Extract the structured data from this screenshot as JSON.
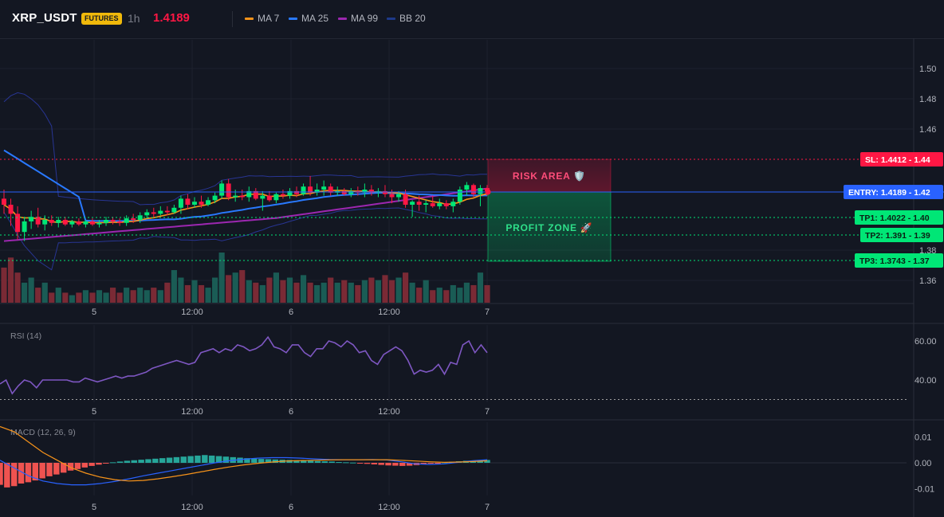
{
  "header": {
    "symbol": "XRP_USDT",
    "badge": "FUTURES",
    "timeframe": "1h",
    "price": "1.4189"
  },
  "legend": [
    {
      "label": "MA 7",
      "color": "#f7931a"
    },
    {
      "label": "MA 25",
      "color": "#2979ff"
    },
    {
      "label": "MA 99",
      "color": "#9c27b0"
    },
    {
      "label": "BB 20",
      "color": "#1e3a8a"
    }
  ],
  "colors": {
    "up": "#26a69a",
    "up_bright": "#00e676",
    "down": "#ff1744",
    "accent": "#2962ff",
    "badge": "#f0b90b",
    "price": "#ff1744"
  },
  "chart_data": [
    {
      "type": "candlestick",
      "pair": "XRP_USDT",
      "x_ticks": [
        "5",
        "12:00",
        "6",
        "12:00",
        "7"
      ],
      "y_ticks": [
        "1.50",
        "1.48",
        "1.46",
        "1.38",
        "1.36"
      ],
      "ylim": [
        1.353,
        1.513
      ],
      "grid": true,
      "overlays": [
        {
          "name": "MA 7",
          "color": "#f7931a"
        },
        {
          "name": "MA 25",
          "color": "#2979ff"
        },
        {
          "name": "MA 99",
          "color": "#9c27b0"
        },
        {
          "name": "BB 20",
          "color": "#1e3a8a"
        }
      ],
      "levels": [
        {
          "label": "SL: 1.4412",
          "value": 1.44,
          "axis_label": "1.44",
          "color": "#ff1744",
          "style": "dotted"
        },
        {
          "label": "ENTRY: 1.4189",
          "value": 1.42,
          "axis_label": "1.42",
          "color": "#2962ff",
          "style": "solid"
        },
        {
          "label": "TP1: 1.4022",
          "value": 1.4,
          "axis_label": "1.40",
          "color": "#00e676",
          "style": "dotted"
        },
        {
          "label": "TP2: 1.391",
          "value": 1.39,
          "axis_label": "1.39",
          "color": "#00e676",
          "style": "dotted"
        },
        {
          "label": "TP3: 1.3743",
          "value": 1.37,
          "axis_label": "1.37",
          "color": "#00e676",
          "style": "dotted"
        }
      ],
      "zones": [
        {
          "label": "RISK AREA 🛡️",
          "from": 1.4189,
          "to": 1.4412,
          "color": "#ff1744"
        },
        {
          "label": "PROFIT ZONE 🚀",
          "from": 1.3743,
          "to": 1.4189,
          "color": "#00e676"
        }
      ],
      "candles": [
        {
          "o": 1.414,
          "h": 1.42,
          "l": 1.404,
          "c": 1.41
        },
        {
          "o": 1.41,
          "h": 1.414,
          "l": 1.396,
          "c": 1.404
        },
        {
          "o": 1.404,
          "h": 1.409,
          "l": 1.387,
          "c": 1.392
        },
        {
          "o": 1.392,
          "h": 1.402,
          "l": 1.386,
          "c": 1.399
        },
        {
          "o": 1.399,
          "h": 1.406,
          "l": 1.394,
          "c": 1.402
        },
        {
          "o": 1.402,
          "h": 1.408,
          "l": 1.395,
          "c": 1.397
        },
        {
          "o": 1.397,
          "h": 1.403,
          "l": 1.393,
          "c": 1.4
        },
        {
          "o": 1.4,
          "h": 1.403,
          "l": 1.396,
          "c": 1.398
        },
        {
          "o": 1.398,
          "h": 1.402,
          "l": 1.395,
          "c": 1.4
        },
        {
          "o": 1.4,
          "h": 1.402,
          "l": 1.396,
          "c": 1.397
        },
        {
          "o": 1.397,
          "h": 1.4,
          "l": 1.395,
          "c": 1.399
        },
        {
          "o": 1.399,
          "h": 1.401,
          "l": 1.396,
          "c": 1.397
        },
        {
          "o": 1.397,
          "h": 1.4,
          "l": 1.395,
          "c": 1.399
        },
        {
          "o": 1.399,
          "h": 1.401,
          "l": 1.396,
          "c": 1.397
        },
        {
          "o": 1.397,
          "h": 1.4,
          "l": 1.395,
          "c": 1.398
        },
        {
          "o": 1.398,
          "h": 1.402,
          "l": 1.396,
          "c": 1.4
        },
        {
          "o": 1.4,
          "h": 1.402,
          "l": 1.397,
          "c": 1.399
        },
        {
          "o": 1.399,
          "h": 1.401,
          "l": 1.396,
          "c": 1.398
        },
        {
          "o": 1.398,
          "h": 1.403,
          "l": 1.396,
          "c": 1.401
        },
        {
          "o": 1.401,
          "h": 1.404,
          "l": 1.398,
          "c": 1.4
        },
        {
          "o": 1.4,
          "h": 1.405,
          "l": 1.398,
          "c": 1.403
        },
        {
          "o": 1.403,
          "h": 1.407,
          "l": 1.401,
          "c": 1.405
        },
        {
          "o": 1.405,
          "h": 1.408,
          "l": 1.402,
          "c": 1.404
        },
        {
          "o": 1.404,
          "h": 1.409,
          "l": 1.403,
          "c": 1.406
        },
        {
          "o": 1.406,
          "h": 1.409,
          "l": 1.403,
          "c": 1.405
        },
        {
          "o": 1.405,
          "h": 1.41,
          "l": 1.404,
          "c": 1.408
        },
        {
          "o": 1.408,
          "h": 1.416,
          "l": 1.404,
          "c": 1.414
        },
        {
          "o": 1.414,
          "h": 1.417,
          "l": 1.407,
          "c": 1.41
        },
        {
          "o": 1.41,
          "h": 1.415,
          "l": 1.408,
          "c": 1.412
        },
        {
          "o": 1.412,
          "h": 1.416,
          "l": 1.408,
          "c": 1.41
        },
        {
          "o": 1.41,
          "h": 1.415,
          "l": 1.409,
          "c": 1.413
        },
        {
          "o": 1.413,
          "h": 1.418,
          "l": 1.411,
          "c": 1.416
        },
        {
          "o": 1.416,
          "h": 1.426,
          "l": 1.414,
          "c": 1.424
        },
        {
          "o": 1.424,
          "h": 1.427,
          "l": 1.413,
          "c": 1.415
        },
        {
          "o": 1.415,
          "h": 1.42,
          "l": 1.412,
          "c": 1.416
        },
        {
          "o": 1.416,
          "h": 1.42,
          "l": 1.413,
          "c": 1.415
        },
        {
          "o": 1.415,
          "h": 1.422,
          "l": 1.412,
          "c": 1.419
        },
        {
          "o": 1.419,
          "h": 1.421,
          "l": 1.413,
          "c": 1.414
        },
        {
          "o": 1.414,
          "h": 1.419,
          "l": 1.406,
          "c": 1.416
        },
        {
          "o": 1.416,
          "h": 1.419,
          "l": 1.412,
          "c": 1.413
        },
        {
          "o": 1.413,
          "h": 1.418,
          "l": 1.411,
          "c": 1.417
        },
        {
          "o": 1.417,
          "h": 1.42,
          "l": 1.414,
          "c": 1.416
        },
        {
          "o": 1.416,
          "h": 1.421,
          "l": 1.414,
          "c": 1.419
        },
        {
          "o": 1.419,
          "h": 1.422,
          "l": 1.415,
          "c": 1.417
        },
        {
          "o": 1.417,
          "h": 1.424,
          "l": 1.416,
          "c": 1.422
        },
        {
          "o": 1.422,
          "h": 1.429,
          "l": 1.416,
          "c": 1.418
        },
        {
          "o": 1.418,
          "h": 1.424,
          "l": 1.416,
          "c": 1.42
        },
        {
          "o": 1.42,
          "h": 1.426,
          "l": 1.416,
          "c": 1.422
        },
        {
          "o": 1.422,
          "h": 1.424,
          "l": 1.416,
          "c": 1.418
        },
        {
          "o": 1.418,
          "h": 1.422,
          "l": 1.416,
          "c": 1.419
        },
        {
          "o": 1.419,
          "h": 1.421,
          "l": 1.416,
          "c": 1.417
        },
        {
          "o": 1.417,
          "h": 1.421,
          "l": 1.415,
          "c": 1.419
        },
        {
          "o": 1.419,
          "h": 1.422,
          "l": 1.416,
          "c": 1.418
        },
        {
          "o": 1.418,
          "h": 1.424,
          "l": 1.415,
          "c": 1.42
        },
        {
          "o": 1.42,
          "h": 1.423,
          "l": 1.416,
          "c": 1.418
        },
        {
          "o": 1.418,
          "h": 1.421,
          "l": 1.415,
          "c": 1.419
        },
        {
          "o": 1.419,
          "h": 1.423,
          "l": 1.415,
          "c": 1.417
        },
        {
          "o": 1.417,
          "h": 1.42,
          "l": 1.411,
          "c": 1.415
        },
        {
          "o": 1.415,
          "h": 1.419,
          "l": 1.412,
          "c": 1.417
        },
        {
          "o": 1.417,
          "h": 1.42,
          "l": 1.408,
          "c": 1.41
        },
        {
          "o": 1.41,
          "h": 1.413,
          "l": 1.402,
          "c": 1.412
        },
        {
          "o": 1.412,
          "h": 1.416,
          "l": 1.406,
          "c": 1.41
        },
        {
          "o": 1.41,
          "h": 1.413,
          "l": 1.405,
          "c": 1.411
        },
        {
          "o": 1.411,
          "h": 1.416,
          "l": 1.408,
          "c": 1.409
        },
        {
          "o": 1.409,
          "h": 1.414,
          "l": 1.407,
          "c": 1.411
        },
        {
          "o": 1.411,
          "h": 1.413,
          "l": 1.407,
          "c": 1.409
        },
        {
          "o": 1.409,
          "h": 1.414,
          "l": 1.405,
          "c": 1.412
        },
        {
          "o": 1.412,
          "h": 1.422,
          "l": 1.41,
          "c": 1.42
        },
        {
          "o": 1.42,
          "h": 1.425,
          "l": 1.416,
          "c": 1.423
        },
        {
          "o": 1.423,
          "h": 1.424,
          "l": 1.415,
          "c": 1.417
        },
        {
          "o": 1.417,
          "h": 1.423,
          "l": 1.409,
          "c": 1.421
        },
        {
          "o": 1.421,
          "h": 1.423,
          "l": 1.416,
          "c": 1.419
        }
      ],
      "volume": [
        0.7,
        0.9,
        0.6,
        0.4,
        0.5,
        0.3,
        0.4,
        0.2,
        0.3,
        0.2,
        0.15,
        0.2,
        0.25,
        0.2,
        0.25,
        0.2,
        0.3,
        0.2,
        0.3,
        0.25,
        0.3,
        0.25,
        0.3,
        0.25,
        0.4,
        0.65,
        0.5,
        0.35,
        0.45,
        0.35,
        0.3,
        0.5,
        1.0,
        0.55,
        0.6,
        0.65,
        0.45,
        0.4,
        0.35,
        0.5,
        0.6,
        0.45,
        0.5,
        0.4,
        0.55,
        0.4,
        0.35,
        0.4,
        0.5,
        0.4,
        0.45,
        0.4,
        0.35,
        0.45,
        0.5,
        0.45,
        0.55,
        0.45,
        0.5,
        0.6,
        0.4,
        0.3,
        0.45,
        0.25,
        0.3,
        0.25,
        0.35,
        0.3,
        0.4,
        0.35,
        0.6,
        0.35
      ]
    },
    {
      "type": "line",
      "title": "RSI (14)",
      "y_ticks": [
        "60.00",
        "40.00"
      ],
      "ylim": [
        30,
        68
      ],
      "reference_line": 30,
      "series": [
        {
          "color": "#7e57c2",
          "values": [
            38,
            40,
            33,
            37,
            40,
            39,
            36,
            40,
            40,
            40,
            40,
            40,
            39,
            39,
            41,
            40,
            39,
            40,
            41,
            42,
            41,
            42,
            42,
            43,
            44,
            46,
            47,
            48,
            49,
            50,
            49,
            48,
            49,
            54,
            55,
            56,
            54,
            56,
            55,
            58,
            57,
            55,
            56,
            58,
            62,
            57,
            56,
            54,
            58,
            58,
            54,
            52,
            56,
            56,
            60,
            59,
            57,
            60,
            58,
            54,
            55,
            50,
            48,
            53,
            55,
            57,
            55,
            50,
            43,
            45,
            44,
            45,
            48,
            43,
            49,
            48,
            58,
            60,
            54,
            58,
            54
          ]
        }
      ]
    },
    {
      "type": "bar+line",
      "title": "MACD (12, 26, 9)",
      "y_ticks": [
        "0.01",
        "0.00",
        "-0.01"
      ],
      "ylim": [
        -0.0125,
        0.0125
      ],
      "histogram": [
        -0.0085,
        -0.0095,
        -0.009,
        -0.008,
        -0.0075,
        -0.0068,
        -0.006,
        -0.0052,
        -0.0045,
        -0.0038,
        -0.003,
        -0.0024,
        -0.0018,
        -0.0012,
        -0.0007,
        -0.0003,
        0.0002,
        0.0005,
        0.0008,
        0.001,
        0.0012,
        0.0014,
        0.0016,
        0.0018,
        0.002,
        0.0022,
        0.0024,
        0.0026,
        0.0028,
        0.003,
        0.0028,
        0.0026,
        0.0024,
        0.0022,
        0.002,
        0.0018,
        0.0016,
        0.0015,
        0.0014,
        0.0013,
        0.0012,
        0.0011,
        0.001,
        0.0009,
        0.0008,
        0.0007,
        0.0006,
        0.0005,
        0.0003,
        0.0002,
        0.0001,
        -0.0002,
        -0.0004,
        -0.0006,
        -0.0008,
        -0.001,
        -0.0011,
        -0.0012,
        -0.0011,
        -0.0009,
        -0.0006,
        -0.0003,
        -0.0001,
        0.0002,
        0.0004,
        0.0006,
        0.0008,
        0.0009,
        0.001,
        0.0011
      ],
      "series": [
        {
          "color": "#2962ff",
          "values": [
            0.001,
            -0.002,
            -0.005,
            -0.007,
            -0.008,
            -0.0085,
            -0.0085,
            -0.008,
            -0.0072,
            -0.0062,
            -0.005,
            -0.004,
            -0.003,
            -0.002,
            -0.001,
            0.0,
            0.0008,
            0.0014,
            0.0018,
            0.002,
            0.002,
            0.0018,
            0.0015,
            0.0013,
            0.0012,
            0.0012,
            0.0013,
            0.0011,
            0.0004,
            -0.0004,
            -0.0006,
            -0.0004,
            0.0002,
            0.0008,
            0.0012
          ]
        },
        {
          "color": "#f7931a",
          "values": [
            0.014,
            0.012,
            0.008,
            0.004,
            0.001,
            -0.002,
            -0.004,
            -0.0055,
            -0.0065,
            -0.007,
            -0.0068,
            -0.0062,
            -0.0054,
            -0.0045,
            -0.0035,
            -0.0025,
            -0.0016,
            -0.0008,
            -0.0002,
            0.0003,
            0.0007,
            0.0009,
            0.001,
            0.0011,
            0.0012,
            0.0012,
            0.0012,
            0.0012,
            0.001,
            0.0007,
            0.0004,
            0.0002,
            0.0003,
            0.0005,
            0.0008
          ]
        }
      ]
    }
  ]
}
